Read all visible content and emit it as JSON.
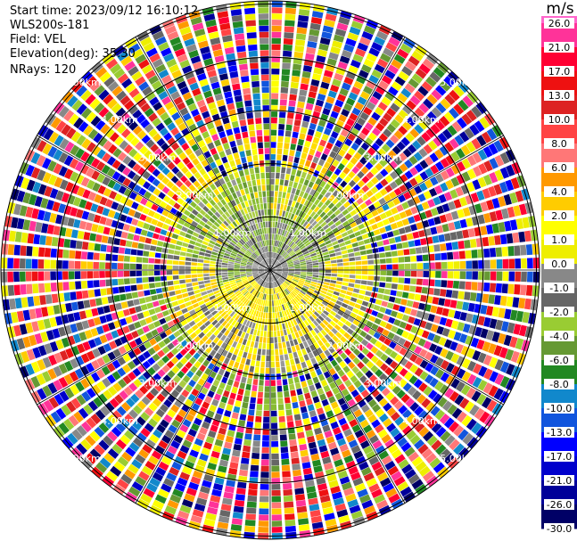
{
  "info": {
    "start_time": "Start time: 2023/09/12 16:10:12",
    "station": "WLS200s-181",
    "field": "Field: VEL",
    "elevation": "Elevation(deg): 35.30",
    "nrays": "NRays: 120"
  },
  "chart_data": {
    "type": "ppi-radar",
    "title": "",
    "units": "m/s",
    "field": "VEL",
    "elevation_deg": 35.3,
    "nrays": 120,
    "range_ring_labels": [
      "1.00km",
      "2.00km",
      "3.00km",
      "4.00km",
      "5.00km"
    ],
    "range_rings_km": [
      1,
      2,
      3,
      4,
      5
    ],
    "colorbar": {
      "ticks": [
        "26.0",
        "21.0",
        "17.0",
        "13.0",
        "10.0",
        "8.0",
        "6.0",
        "4.0",
        "2.0",
        "1.0",
        "0.0",
        "-1.0",
        "-2.0",
        "-4.0",
        "-6.0",
        "-8.0",
        "-10.0",
        "-13.0",
        "-17.0",
        "-21.0",
        "-26.0",
        "-30.0"
      ],
      "colors": [
        "#ff3399",
        "#ff0033",
        "#ee1111",
        "#dd2222",
        "#ff4444",
        "#ff7777",
        "#ff9900",
        "#ffcc00",
        "#ffff00",
        "#eeee00",
        "#888888",
        "#666666",
        "#99cc33",
        "#669933",
        "#228822",
        "#1188cc",
        "#1155dd",
        "#0000ff",
        "#0000cc",
        "#000099",
        "#000066"
      ]
    },
    "structure": {
      "inner_range_km": 1.0,
      "inner_mean": "near zero (gray), mix of slight negative (green) to the north and slight positive (yellow) to the south",
      "ring_1_to_2km": "negative (green) north/west, positive (yellow) south/east",
      "outer_range": "noise (all colors)"
    }
  }
}
